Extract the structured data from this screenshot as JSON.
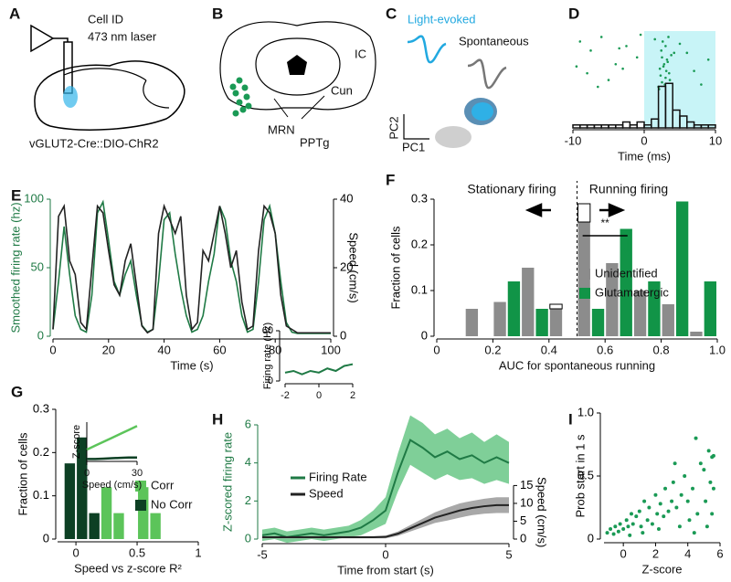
{
  "diagrams": [
    {
      "label": "A",
      "texts": [
        "Cell ID",
        "473 nm laser",
        "vGLUT2-Cre::DIO-ChR2"
      ]
    },
    {
      "label": "B",
      "texts": [
        "IC",
        "Cun",
        "MRN",
        "PPTg"
      ]
    },
    {
      "label": "C",
      "texts": [
        "Light-evoked",
        "Spontaneous",
        "PC2",
        "PC1"
      ]
    }
  ],
  "chart_data": [
    {
      "label": "D",
      "type": "histogram",
      "xlabel": "Time (ms)",
      "xlim": [
        -10,
        10
      ],
      "xticks": [
        -10,
        0,
        10
      ],
      "ylim": [
        0,
        16
      ],
      "shade": [
        0,
        10
      ],
      "shade_color": "#c8f4f7",
      "raster": {
        "color": "#1a9a55",
        "x": [
          -9,
          -7.5,
          -6,
          -4,
          -2.5,
          -1,
          -8,
          -5,
          -3,
          -0.5,
          2,
          2.5,
          3,
          3.5,
          2.2,
          2.8,
          3.2,
          3.8,
          2.4,
          3.0,
          2.6,
          3.4,
          2.1,
          2.9,
          3.6,
          2.3,
          3.1,
          2.7,
          3.3,
          2.5,
          6,
          8,
          5,
          7,
          9,
          -9.5,
          -6.5,
          -3.5,
          1.5,
          4.2
        ],
        "trial": [
          22,
          18,
          24,
          12,
          20,
          15,
          8,
          5,
          10,
          25,
          2,
          4,
          6,
          8,
          10,
          12,
          14,
          16,
          18,
          20,
          22,
          24,
          1,
          3,
          5,
          7,
          9,
          11,
          13,
          15,
          17,
          3,
          21,
          9,
          14,
          11,
          2,
          19,
          23,
          17
        ]
      },
      "bins": [
        -10,
        -9,
        -8,
        -7,
        -6,
        -5,
        -4,
        -3,
        -2,
        -1,
        0,
        1,
        2,
        3,
        4,
        5,
        6,
        7,
        8,
        9,
        10
      ],
      "values": [
        1,
        1,
        1,
        1,
        1,
        1,
        1,
        2,
        1,
        2,
        1,
        3,
        14,
        15,
        6,
        4,
        2,
        1,
        1,
        1
      ],
      "color": "#111111"
    },
    {
      "label": "E",
      "type": "line",
      "xlabel": "Time (s)",
      "ylabel": "Smoothed firing rate (hz)",
      "y2label": "Speed (cm/s)",
      "xlim": [
        0,
        100
      ],
      "xticks": [
        0,
        20,
        40,
        60,
        80,
        100
      ],
      "ylim": [
        0,
        100
      ],
      "yticks": [
        0,
        50,
        100
      ],
      "y2lim": [
        0,
        40
      ],
      "y2ticks": [
        0,
        20,
        40
      ],
      "x": [
        0,
        2,
        4,
        6,
        8,
        10,
        12,
        14,
        16,
        18,
        20,
        22,
        24,
        26,
        28,
        30,
        32,
        34,
        36,
        38,
        40,
        42,
        44,
        46,
        48,
        50,
        52,
        54,
        56,
        58,
        60,
        62,
        64,
        66,
        68,
        70,
        72,
        74,
        76,
        78,
        80,
        82,
        84,
        86,
        88,
        90,
        92,
        94,
        96,
        98,
        100
      ],
      "series": [
        {
          "color": "#1f7a45",
          "values": [
            5,
            40,
            80,
            45,
            15,
            5,
            3,
            30,
            90,
            98,
            70,
            40,
            30,
            45,
            55,
            30,
            8,
            3,
            5,
            40,
            85,
            90,
            60,
            35,
            15,
            3,
            5,
            15,
            40,
            60,
            95,
            85,
            55,
            40,
            15,
            3,
            5,
            40,
            85,
            95,
            75,
            40,
            10,
            3,
            2,
            2,
            2,
            2,
            2,
            2,
            2
          ]
        },
        {
          "color": "#222222",
          "axis": "y2",
          "values": [
            2,
            35,
            38,
            22,
            18,
            4,
            2,
            20,
            38,
            36,
            25,
            15,
            12,
            22,
            27,
            15,
            3,
            1,
            2,
            30,
            38,
            34,
            30,
            35,
            12,
            2,
            4,
            25,
            22,
            30,
            38,
            30,
            20,
            25,
            10,
            2,
            3,
            25,
            38,
            36,
            30,
            12,
            3,
            2,
            1,
            1,
            1,
            1,
            1,
            1,
            1
          ]
        }
      ]
    },
    {
      "label": "F",
      "type": "histogram",
      "bar_layout": "grouped",
      "xlabel": "AUC for spontaneous running",
      "ylabel": "Fraction of cells",
      "xlim": [
        0,
        1
      ],
      "xticks": [
        0,
        0.2,
        0.4,
        0.6,
        0.8,
        {
          "value": 1,
          "label": "1.0"
        }
      ],
      "ylim": [
        0,
        0.3
      ],
      "yticks": [
        0,
        0.1,
        0.2,
        0.3
      ],
      "bins": [
        0.1,
        0.2,
        0.3,
        0.4,
        0.5,
        0.6,
        0.7,
        0.8,
        0.9,
        1.0
      ],
      "series": [
        {
          "name": "Unidentified",
          "color": "#8c8c8c",
          "values": [
            0.06,
            0.075,
            0.15,
            0.06,
            0.25,
            0.16,
            0.1,
            0.07,
            0.01
          ]
        },
        {
          "name": "Glutamatergic",
          "color": "#119447",
          "values": [
            null,
            0.12,
            0.06,
            null,
            0.06,
            0.235,
            0.12,
            0.295,
            0.12
          ]
        }
      ],
      "outlined_top": [
        null,
        null,
        null,
        0.01,
        0.04,
        null,
        null,
        null,
        null
      ],
      "annotations": [
        "Stationary firing",
        "Running firing",
        "**"
      ],
      "divider": 0.5,
      "markers": [
        {
          "x": 0.52,
          "color": "#8c8c8c"
        },
        {
          "x": 0.68,
          "color": "#119447"
        }
      ]
    },
    {
      "label": "G",
      "type": "histogram",
      "bar_layout": "overlaid",
      "xlabel": "Speed vs z-score R²",
      "ylabel": "Fraction of cells",
      "xlim": [
        -0.15,
        1
      ],
      "xticks": [
        0,
        0.5,
        1
      ],
      "ylim": [
        0,
        0.3
      ],
      "yticks": [
        0,
        0.1,
        0.2,
        0.3
      ],
      "bins": [
        -0.1,
        0,
        0.1,
        0.2,
        0.3,
        0.4,
        0.5,
        0.6,
        0.7
      ],
      "series": [
        {
          "name": "Corr",
          "color": "#5cc45a",
          "values": [
            null,
            null,
            null,
            0.12,
            0.06,
            null,
            0.12,
            0.06
          ]
        },
        {
          "name": "No Corr",
          "color": "#0d4024",
          "values": [
            0.175,
            0.235,
            0.06,
            null,
            null,
            null,
            null,
            null
          ]
        }
      ],
      "inset": {
        "xlabel": "Speed (cm/s)",
        "ylabel": "Z-score",
        "xlim": [
          0,
          30
        ],
        "xticks": [
          0,
          30
        ],
        "ylim": [
          0,
          5
        ],
        "x": [
          0,
          5,
          10,
          15,
          20,
          25,
          30
        ],
        "series": [
          {
            "color": "#5cc45a",
            "values": [
              1.5,
              2,
              2.5,
              3,
              3.5,
              4,
              4.5
            ]
          },
          {
            "color": "#0d4024",
            "values": [
              0.3,
              0.3,
              0.35,
              0.4,
              0.45,
              0.5,
              0.5
            ]
          }
        ]
      }
    },
    {
      "label": "H",
      "type": "line",
      "xlabel": "Time from start (s)",
      "ylabel": "Z-scored firing rate",
      "y2label": "Speed (cm/s)",
      "xlim": [
        -5,
        5
      ],
      "xticks": [
        -5,
        0,
        5
      ],
      "ylim": [
        0,
        6
      ],
      "yticks": [
        0,
        2,
        4,
        6
      ],
      "y2lim": [
        0,
        32
      ],
      "y2ticks": [
        0,
        5,
        10,
        15
      ],
      "x": [
        -5,
        -4.5,
        -4,
        -3.5,
        -3,
        -2.5,
        -2,
        -1.5,
        -1,
        -0.5,
        0,
        0.5,
        1,
        1.5,
        2,
        2.5,
        3,
        3.5,
        4,
        4.5,
        5
      ],
      "series": [
        {
          "name": "Firing Rate",
          "color": "#1f7a45",
          "band_color": "#7fcf98",
          "values": [
            0.2,
            0.3,
            0.1,
            0.2,
            0.3,
            0.2,
            0.3,
            0.4,
            0.6,
            1.0,
            1.5,
            3.5,
            5.2,
            4.8,
            4.3,
            4.6,
            4.2,
            4.4,
            4.0,
            4.3,
            4.0
          ],
          "error": [
            0.3,
            0.3,
            0.3,
            0.3,
            0.3,
            0.3,
            0.3,
            0.3,
            0.4,
            0.5,
            0.7,
            1.0,
            1.3,
            1.3,
            1.2,
            1.2,
            1.1,
            1.2,
            1.1,
            1.2,
            1.1
          ]
        },
        {
          "name": "Speed",
          "color": "#222222",
          "band_color": "#a8a8a8",
          "axis": "y2",
          "values": [
            0.5,
            0.5,
            0.5,
            0.5,
            0.5,
            0.5,
            0.5,
            0.5,
            0.5,
            0.5,
            0.6,
            1.5,
            3,
            4.5,
            6,
            7,
            8,
            8.7,
            9.2,
            9.5,
            9.5
          ],
          "error": [
            0.3,
            0.3,
            0.3,
            0.3,
            0.3,
            0.3,
            0.3,
            0.3,
            0.3,
            0.3,
            0.4,
            0.6,
            0.9,
            1.2,
            1.5,
            1.8,
            2,
            2,
            2.1,
            2.2,
            2.2
          ]
        }
      ],
      "inset": {
        "ylabel": "Firing rate (Hz)",
        "xlim": [
          -2,
          2
        ],
        "xticks": [
          -2,
          0,
          2
        ],
        "ylim": [
          0,
          60
        ],
        "yticks": [
          0,
          60
        ],
        "x": [
          -2,
          -1.5,
          -1,
          -0.5,
          0,
          0.5,
          1,
          1.5,
          2
        ],
        "series": [
          {
            "color": "#1f7a45",
            "values": [
              10,
              12,
              8,
              12,
              10,
              15,
              12,
              18,
              20
            ]
          }
        ]
      }
    },
    {
      "label": "I",
      "type": "scatter",
      "xlabel": "Z-score",
      "ylabel": "Prob start in 1 s",
      "color": "#1a9a55",
      "xlim": [
        -1.2,
        6
      ],
      "xticks": [
        0,
        2,
        4,
        6
      ],
      "ylim": [
        0,
        1
      ],
      "yticks": [
        0,
        0.5,
        {
          "value": 1,
          "label": "1.0"
        }
      ],
      "x": [
        -1,
        -0.8,
        -0.6,
        -0.5,
        -0.3,
        -0.2,
        0,
        0.2,
        0.3,
        0.5,
        0.6,
        0.8,
        1,
        1.1,
        1.3,
        1.5,
        1.6,
        1.8,
        2,
        2.1,
        2.3,
        2.5,
        2.6,
        2.8,
        3,
        3.1,
        3.3,
        3.5,
        3.6,
        3.8,
        4,
        4.1,
        4.3,
        4.5,
        4.6,
        4.8,
        5,
        5.1,
        5.2,
        5.3,
        5.4,
        5.5,
        5.5,
        5.6,
        5.6,
        4.4,
        3.2,
        2.2,
        1.2,
        0.4
      ],
      "values": [
        0.05,
        0.08,
        0.04,
        0.1,
        0.06,
        0.12,
        0.08,
        0.15,
        0.1,
        0.2,
        0.12,
        0.18,
        0.22,
        0.1,
        0.3,
        0.15,
        0.25,
        0.12,
        0.35,
        0.2,
        0.28,
        0.18,
        0.4,
        0.22,
        0.3,
        0.45,
        0.25,
        0.1,
        0.35,
        0.5,
        0.3,
        0.15,
        0.4,
        0.8,
        0.2,
        0.6,
        0.55,
        0.3,
        0.1,
        0.7,
        0.45,
        0.65,
        0.2,
        0.66,
        0.4,
        0.05,
        0.6,
        0.08,
        0.05,
        0.03
      ]
    }
  ]
}
